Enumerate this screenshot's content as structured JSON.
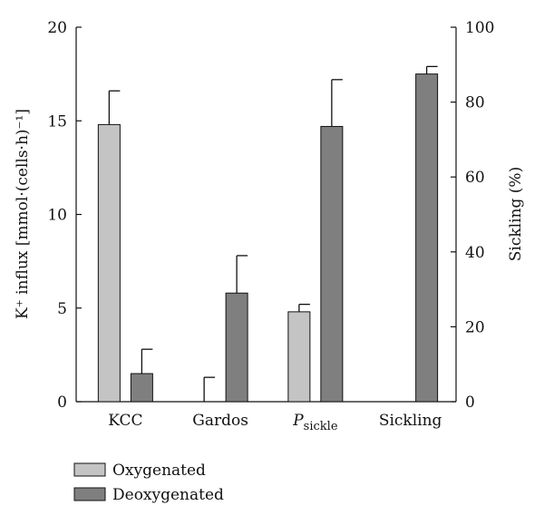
{
  "chart_data": {
    "type": "bar",
    "categories": [
      "KCC",
      "Gardos",
      "P",
      "Sickling"
    ],
    "category_subscripts": [
      "",
      "",
      "sickle",
      ""
    ],
    "series": [
      {
        "name": "Oxygenated",
        "color": "#c4c4c4",
        "axis": "left",
        "values": [
          14.8,
          0,
          4.8,
          0
        ],
        "errors": [
          1.8,
          1.3,
          0.4,
          0
        ]
      },
      {
        "name": "Deoxygenated",
        "color": "#7f7f7f",
        "axis": "right",
        "values": [
          7.5,
          29,
          73.5,
          87.5
        ],
        "errors": [
          6.5,
          10,
          12.5,
          2
        ]
      }
    ],
    "ylim_left": [
      0,
      20
    ],
    "ylim_right": [
      0,
      100
    ],
    "yticks_left": [
      "0",
      "5",
      "10",
      "15",
      "20"
    ],
    "yticks_right": [
      "0",
      "20",
      "40",
      "60",
      "80",
      "100"
    ],
    "ylabel_left": "K⁺ influx [mmol·(cells·h)⁻¹]",
    "ylabel_right": "Sickling (%)",
    "legend_position": "bottom-left",
    "grid": false
  }
}
